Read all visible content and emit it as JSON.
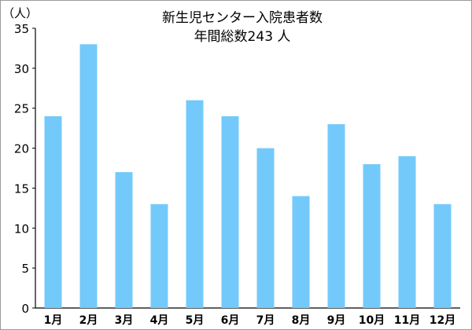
{
  "chart_data": {
    "type": "bar",
    "title": "新生児センター入院患者数",
    "subtitle": "年間総数243 人",
    "unit_label": "（人）",
    "categories": [
      "1月",
      "2月",
      "3月",
      "4月",
      "5月",
      "6月",
      "7月",
      "8月",
      "9月",
      "10月",
      "11月",
      "12月"
    ],
    "values": [
      24,
      33,
      17,
      13,
      26,
      24,
      20,
      14,
      23,
      18,
      19,
      13
    ],
    "ylim": [
      0,
      35
    ],
    "yticks": [
      0,
      5,
      10,
      15,
      20,
      25,
      30,
      35
    ],
    "grid": false,
    "legend": "none",
    "bar_color": "#73cafa"
  }
}
